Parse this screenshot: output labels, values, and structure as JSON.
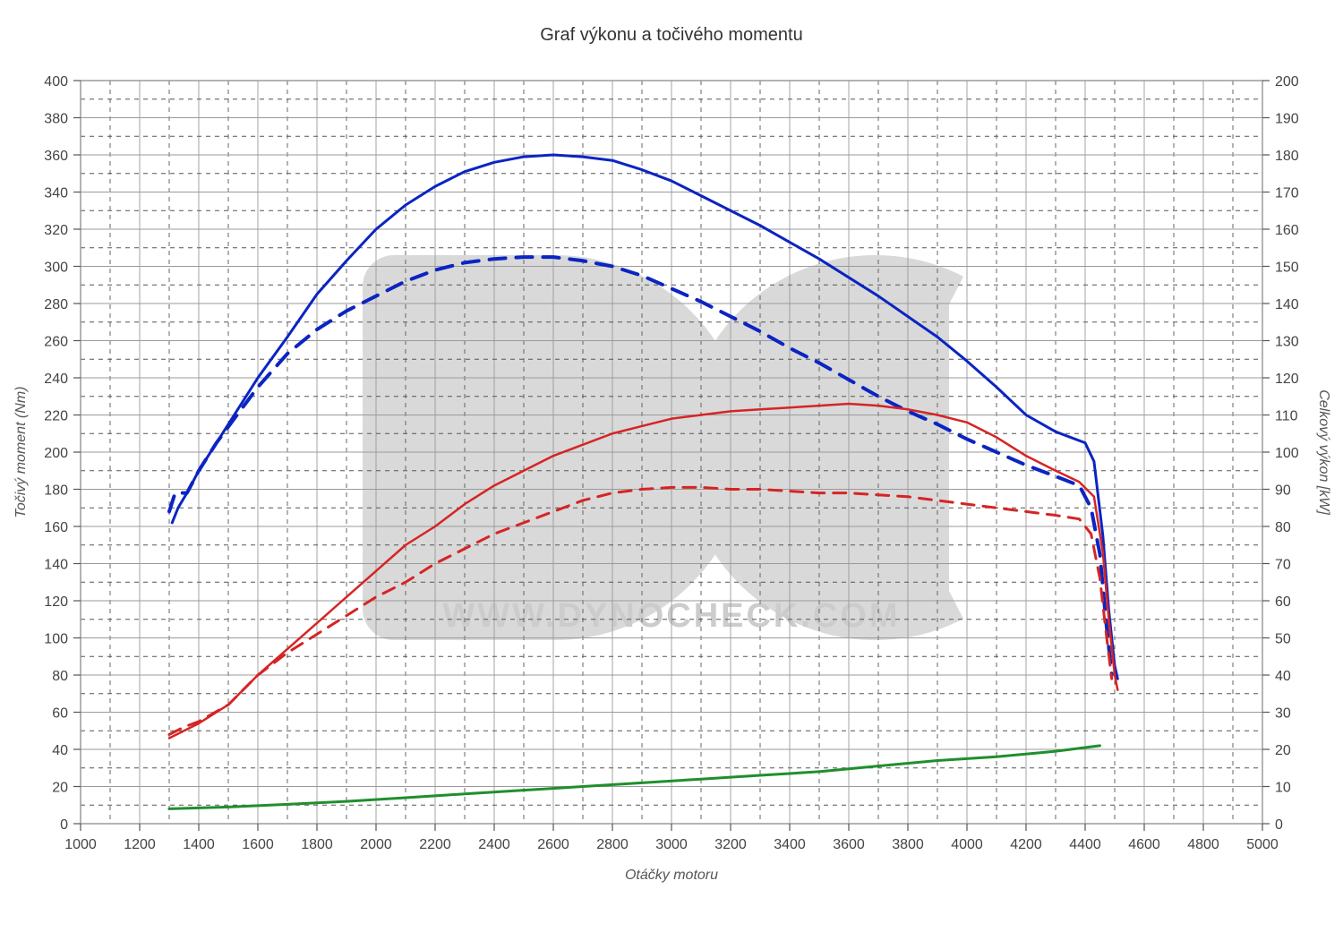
{
  "chart": {
    "type": "line-dual-axis",
    "title": "Graf výkonu a točivého momentu",
    "xlabel": "Otáčky motoru",
    "ylabel_left": "Točivý moment (Nm)",
    "ylabel_right": "Celkový výkon [kW]",
    "title_fontsize": 20,
    "label_fontsize": 16,
    "tick_fontsize": 16,
    "background_color": "#ffffff",
    "plot_border_color": "#9a9a9a",
    "plot_border_width": 1.5,
    "major_grid_color": "#9a9a9a",
    "major_grid_width": 0.9,
    "major_grid_dash": "",
    "minor_grid_color": "#555555",
    "minor_grid_dash": "5 5",
    "minor_grid_width": 0.9,
    "x": {
      "min": 1000,
      "max": 5000,
      "major_step": 200,
      "minor_step": 100,
      "tick_values": [
        1000,
        1200,
        1400,
        1600,
        1800,
        2000,
        2200,
        2400,
        2600,
        2800,
        3000,
        3200,
        3400,
        3600,
        3800,
        4000,
        4200,
        4400,
        4600,
        4800,
        5000
      ]
    },
    "yL": {
      "min": 0,
      "max": 400,
      "major_step": 20,
      "minor_step": 10,
      "tick_values": [
        0,
        20,
        40,
        60,
        80,
        100,
        120,
        140,
        160,
        180,
        200,
        220,
        240,
        260,
        280,
        300,
        320,
        340,
        360,
        380,
        400
      ]
    },
    "yR": {
      "min": 0,
      "max": 200,
      "major_step": 10,
      "minor_step": 5,
      "tick_values": [
        0,
        10,
        20,
        30,
        40,
        50,
        60,
        70,
        80,
        90,
        100,
        110,
        120,
        130,
        140,
        150,
        160,
        170,
        180,
        190,
        200
      ]
    },
    "watermark": {
      "letters_fill": "#d9d9d9",
      "text": "WWW.DYNOCHECK.COM",
      "text_fill": "#cccccc",
      "text_fontsize": 38
    },
    "series": [
      {
        "id": "torque_tuned",
        "axis": "left",
        "color": "#0b24c2",
        "width": 3,
        "dash": "",
        "points": [
          [
            1310,
            162
          ],
          [
            1330,
            170
          ],
          [
            1360,
            178
          ],
          [
            1400,
            190
          ],
          [
            1460,
            205
          ],
          [
            1520,
            220
          ],
          [
            1600,
            240
          ],
          [
            1700,
            262
          ],
          [
            1800,
            285
          ],
          [
            1900,
            303
          ],
          [
            2000,
            320
          ],
          [
            2100,
            333
          ],
          [
            2200,
            343
          ],
          [
            2300,
            351
          ],
          [
            2400,
            356
          ],
          [
            2500,
            359
          ],
          [
            2600,
            360
          ],
          [
            2700,
            359
          ],
          [
            2800,
            357
          ],
          [
            2900,
            352
          ],
          [
            3000,
            346
          ],
          [
            3100,
            338
          ],
          [
            3200,
            330
          ],
          [
            3300,
            322
          ],
          [
            3400,
            313
          ],
          [
            3500,
            304
          ],
          [
            3600,
            294
          ],
          [
            3700,
            284
          ],
          [
            3800,
            273
          ],
          [
            3900,
            262
          ],
          [
            4000,
            249
          ],
          [
            4100,
            235
          ],
          [
            4200,
            220
          ],
          [
            4300,
            211
          ],
          [
            4400,
            205
          ],
          [
            4430,
            195
          ],
          [
            4460,
            155
          ],
          [
            4480,
            115
          ],
          [
            4500,
            85
          ],
          [
            4510,
            78
          ]
        ]
      },
      {
        "id": "torque_stock",
        "axis": "left",
        "color": "#0b24c2",
        "width": 4,
        "dash": "18 12",
        "points": [
          [
            1300,
            168
          ],
          [
            1320,
            178
          ],
          [
            1360,
            178
          ],
          [
            1400,
            190
          ],
          [
            1460,
            205
          ],
          [
            1520,
            218
          ],
          [
            1600,
            235
          ],
          [
            1700,
            253
          ],
          [
            1800,
            266
          ],
          [
            1900,
            276
          ],
          [
            2000,
            284
          ],
          [
            2100,
            292
          ],
          [
            2200,
            298
          ],
          [
            2300,
            302
          ],
          [
            2400,
            304
          ],
          [
            2500,
            305
          ],
          [
            2600,
            305
          ],
          [
            2700,
            303
          ],
          [
            2800,
            300
          ],
          [
            2900,
            295
          ],
          [
            3000,
            288
          ],
          [
            3100,
            281
          ],
          [
            3200,
            273
          ],
          [
            3300,
            265
          ],
          [
            3400,
            256
          ],
          [
            3500,
            248
          ],
          [
            3600,
            239
          ],
          [
            3700,
            230
          ],
          [
            3800,
            222
          ],
          [
            3900,
            215
          ],
          [
            4000,
            207
          ],
          [
            4100,
            200
          ],
          [
            4200,
            193
          ],
          [
            4300,
            187
          ],
          [
            4380,
            182
          ],
          [
            4420,
            170
          ],
          [
            4450,
            145
          ],
          [
            4470,
            110
          ],
          [
            4490,
            80
          ]
        ]
      },
      {
        "id": "power_tuned",
        "axis": "right",
        "color": "#d62424",
        "width": 2.5,
        "dash": "",
        "points": [
          [
            1300,
            23
          ],
          [
            1350,
            25
          ],
          [
            1400,
            27
          ],
          [
            1500,
            32
          ],
          [
            1600,
            40
          ],
          [
            1700,
            47
          ],
          [
            1800,
            54
          ],
          [
            1900,
            61
          ],
          [
            2000,
            68
          ],
          [
            2100,
            75
          ],
          [
            2200,
            80
          ],
          [
            2300,
            86
          ],
          [
            2400,
            91
          ],
          [
            2500,
            95
          ],
          [
            2600,
            99
          ],
          [
            2700,
            102
          ],
          [
            2800,
            105
          ],
          [
            2900,
            107
          ],
          [
            3000,
            109
          ],
          [
            3100,
            110
          ],
          [
            3200,
            111
          ],
          [
            3300,
            111.5
          ],
          [
            3400,
            112
          ],
          [
            3500,
            112.5
          ],
          [
            3600,
            113
          ],
          [
            3700,
            112.5
          ],
          [
            3800,
            111.5
          ],
          [
            3900,
            110
          ],
          [
            4000,
            108
          ],
          [
            4100,
            104
          ],
          [
            4200,
            99
          ],
          [
            4300,
            95
          ],
          [
            4380,
            92
          ],
          [
            4430,
            88
          ],
          [
            4460,
            73
          ],
          [
            4480,
            55
          ],
          [
            4500,
            40
          ],
          [
            4510,
            36
          ]
        ]
      },
      {
        "id": "power_stock",
        "axis": "right",
        "color": "#d62424",
        "width": 3,
        "dash": "14 10",
        "points": [
          [
            1300,
            24
          ],
          [
            1350,
            26
          ],
          [
            1400,
            27.5
          ],
          [
            1500,
            32
          ],
          [
            1600,
            40
          ],
          [
            1700,
            46
          ],
          [
            1800,
            51
          ],
          [
            1900,
            56
          ],
          [
            2000,
            61
          ],
          [
            2100,
            65
          ],
          [
            2200,
            70
          ],
          [
            2300,
            74
          ],
          [
            2400,
            78
          ],
          [
            2500,
            81
          ],
          [
            2600,
            84
          ],
          [
            2700,
            87
          ],
          [
            2800,
            89
          ],
          [
            2900,
            90
          ],
          [
            3000,
            90.5
          ],
          [
            3100,
            90.5
          ],
          [
            3200,
            90
          ],
          [
            3300,
            90
          ],
          [
            3400,
            89.5
          ],
          [
            3500,
            89
          ],
          [
            3600,
            89
          ],
          [
            3700,
            88.5
          ],
          [
            3800,
            88
          ],
          [
            3900,
            87
          ],
          [
            4000,
            86
          ],
          [
            4100,
            85
          ],
          [
            4200,
            84
          ],
          [
            4300,
            83
          ],
          [
            4380,
            82
          ],
          [
            4420,
            78
          ],
          [
            4450,
            66
          ],
          [
            4470,
            52
          ],
          [
            4490,
            39
          ]
        ]
      },
      {
        "id": "loss_power",
        "axis": "right",
        "color": "#1f8f2d",
        "width": 3,
        "dash": "",
        "points": [
          [
            1300,
            4
          ],
          [
            1500,
            4.5
          ],
          [
            1700,
            5.2
          ],
          [
            1900,
            6
          ],
          [
            2100,
            7
          ],
          [
            2300,
            8
          ],
          [
            2500,
            9
          ],
          [
            2700,
            10
          ],
          [
            2900,
            11
          ],
          [
            3100,
            12
          ],
          [
            3300,
            13
          ],
          [
            3500,
            14
          ],
          [
            3700,
            15.5
          ],
          [
            3900,
            17
          ],
          [
            4100,
            18
          ],
          [
            4300,
            19.5
          ],
          [
            4450,
            21
          ]
        ]
      }
    ]
  }
}
